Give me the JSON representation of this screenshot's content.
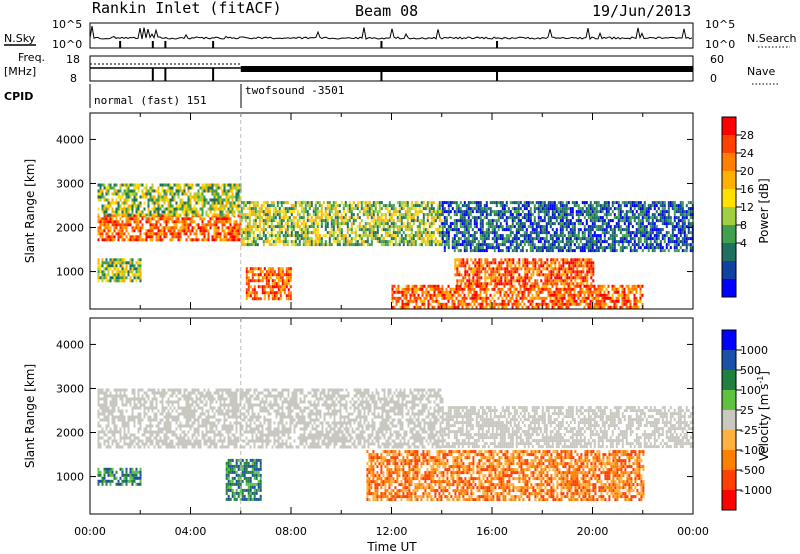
{
  "header": {
    "title": "Rankin Inlet (fitACF)",
    "beam": "Beam 08",
    "date": "19/Jun/2013"
  },
  "status_panels": {
    "nsky_label": "N.Sky",
    "nsky_ticks": [
      "10^5",
      "10^0"
    ],
    "nsearch_label": "N.Search",
    "nsearch_ticks": [
      "10^5",
      "10^0"
    ],
    "freq_label": "Freq.",
    "freq_unit": "[MHz]",
    "freq_ticks": [
      "18",
      "8"
    ],
    "nave_label": "Nave",
    "nave_ticks": [
      "60",
      "0"
    ],
    "cpid_label": "CPID",
    "cpid_segments": [
      {
        "name": "normal (fast) 151",
        "start": 0,
        "end": 6
      },
      {
        "name": "twofsound -3501",
        "start": 6,
        "end": 24
      }
    ]
  },
  "power_colorbar": {
    "label": "Power [dB]",
    "ticks": [
      "28",
      "24",
      "20",
      "16",
      "12",
      "8",
      "4"
    ],
    "colors": [
      "#ff0000",
      "#ff4000",
      "#ff8000",
      "#ffb000",
      "#ffe000",
      "#a0d040",
      "#40a050",
      "#207060",
      "#1040a0",
      "#0000ff"
    ]
  },
  "velocity_colorbar": {
    "label": "Velocity [m s",
    "label_sup": "-1",
    "label_end": "]",
    "ticks": [
      "1000",
      "500",
      "100",
      "25",
      "-25",
      "-100",
      "-500",
      "-1000"
    ],
    "colors": [
      "#0000ff",
      "#1a50a8",
      "#208040",
      "#60c040",
      "#c8c8c0",
      "#ffb040",
      "#ff8000",
      "#ff4000",
      "#ff0000"
    ]
  },
  "chart_data": [
    {
      "type": "heatmap",
      "panel": "power",
      "ylabel": "Slant Range [km]",
      "xlabel": "",
      "xlim": [
        0,
        24
      ],
      "ylim": [
        150,
        4600
      ],
      "yticks": [
        1000,
        2000,
        3000,
        4000
      ],
      "xticks": [
        "00:00",
        "04:00",
        "08:00",
        "12:00",
        "16:00",
        "20:00",
        "00:00"
      ],
      "regions": [
        {
          "t": [
            0.3,
            6.0
          ],
          "r": [
            1700,
            2300
          ],
          "level": "high"
        },
        {
          "t": [
            0.3,
            6.0
          ],
          "r": [
            2300,
            3000
          ],
          "level": "mid"
        },
        {
          "t": [
            0.3,
            2.0
          ],
          "r": [
            800,
            1300
          ],
          "level": "mid"
        },
        {
          "t": [
            6.0,
            14.0
          ],
          "r": [
            1600,
            2600
          ],
          "level": "mid"
        },
        {
          "t": [
            6.2,
            8.0
          ],
          "r": [
            400,
            1100
          ],
          "level": "high"
        },
        {
          "t": [
            14.0,
            24.0
          ],
          "r": [
            1500,
            2600
          ],
          "level": "low"
        },
        {
          "t": [
            14.5,
            20.0
          ],
          "r": [
            700,
            1300
          ],
          "level": "high"
        },
        {
          "t": [
            12.0,
            22.0
          ],
          "r": [
            200,
            700
          ],
          "level": "high"
        }
      ]
    },
    {
      "type": "heatmap",
      "panel": "velocity",
      "ylabel": "Slant Range [km]",
      "xlabel": "Time UT",
      "xlim": [
        0,
        24
      ],
      "ylim": [
        150,
        4600
      ],
      "yticks": [
        1000,
        2000,
        3000,
        4000
      ],
      "xticks": [
        "00:00",
        "04:00",
        "08:00",
        "12:00",
        "16:00",
        "20:00",
        "00:00"
      ],
      "regions": [
        {
          "t": [
            0.3,
            14.0
          ],
          "r": [
            1700,
            3000
          ],
          "velocity": "ground"
        },
        {
          "t": [
            14.0,
            24.0
          ],
          "r": [
            1700,
            2600
          ],
          "velocity": "ground"
        },
        {
          "t": [
            0.3,
            2.0
          ],
          "r": [
            800,
            1200
          ],
          "velocity": "positive"
        },
        {
          "t": [
            5.4,
            6.8
          ],
          "r": [
            500,
            1400
          ],
          "velocity": "positive"
        },
        {
          "t": [
            11.0,
            22.0
          ],
          "r": [
            500,
            1600
          ],
          "velocity": "negative"
        }
      ]
    }
  ]
}
